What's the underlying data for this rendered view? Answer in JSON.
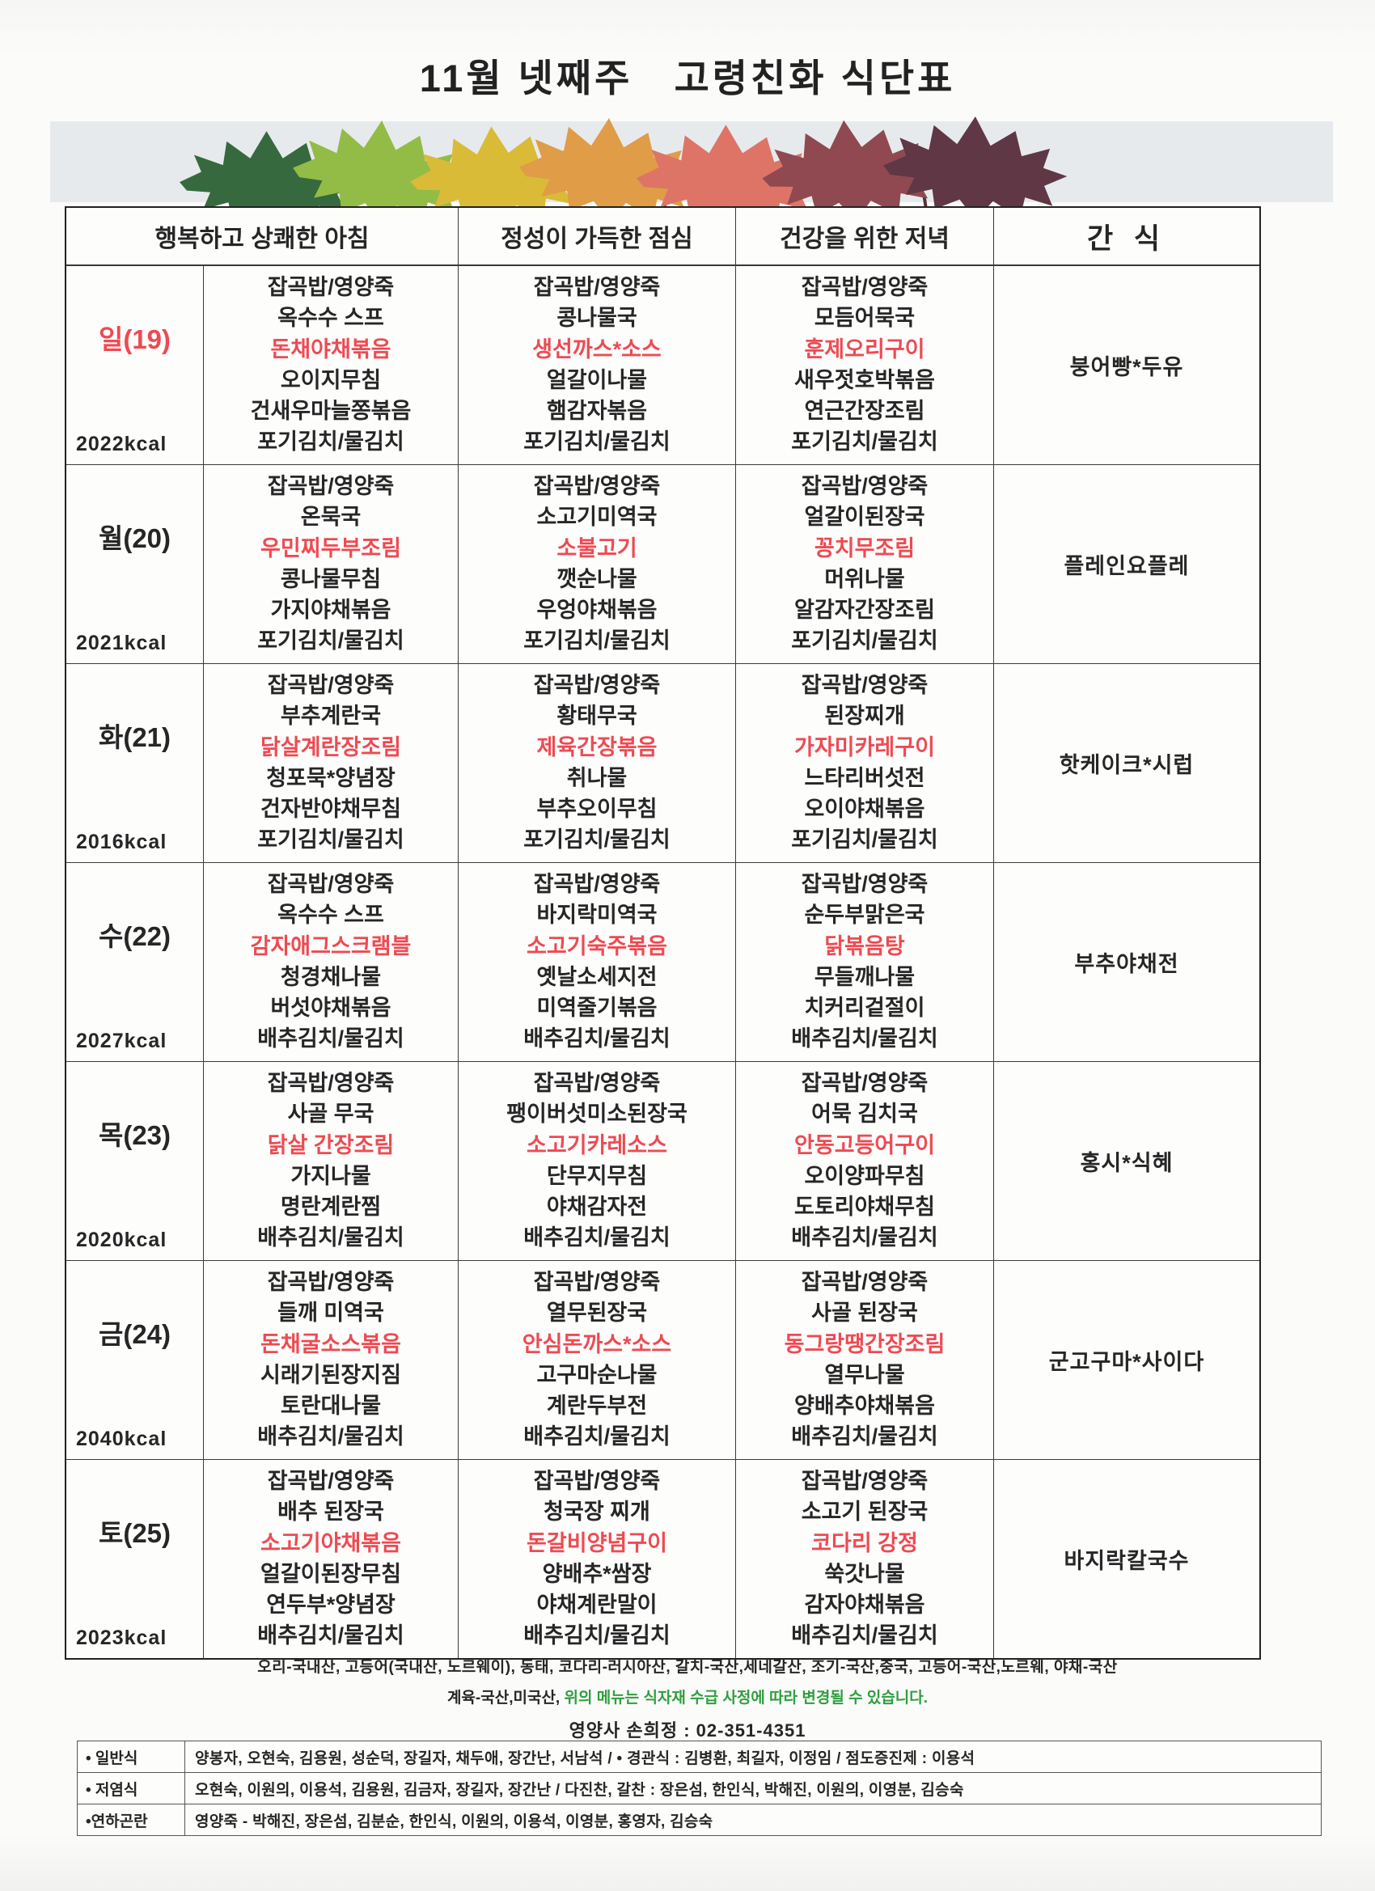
{
  "page": {
    "title": "11월 넷째주   고령친화 식단표"
  },
  "colors": {
    "highlight_red": "#ee4a52",
    "footer_green": "#2f9e3f",
    "banner_background": "#e7eaed"
  },
  "table": {
    "headers": {
      "breakfast": "행복하고 상쾌한 아침",
      "lunch": "정성이 가득한 점심",
      "dinner": "건강을 위한 저녁",
      "snack": "간 식"
    },
    "highlight_index": 2,
    "days": [
      {
        "day": "일(19)",
        "red_day": true,
        "kcal": "2022kcal",
        "breakfast": [
          "잡곡밥/영양죽",
          "옥수수 스프",
          "돈채야채볶음",
          "오이지무침",
          "건새우마늘쫑볶음",
          "포기김치/물김치"
        ],
        "lunch": [
          "잡곡밥/영양죽",
          "콩나물국",
          "생선까스*소스",
          "얼갈이나물",
          "햄감자볶음",
          "포기김치/물김치"
        ],
        "dinner": [
          "잡곡밥/영양죽",
          "모듬어묵국",
          "훈제오리구이",
          "새우젓호박볶음",
          "연근간장조림",
          "포기김치/물김치"
        ],
        "snack": "붕어빵*두유"
      },
      {
        "day": "월(20)",
        "red_day": false,
        "kcal": "2021kcal",
        "breakfast": [
          "잡곡밥/영양죽",
          "온묵국",
          "우민찌두부조림",
          "콩나물무침",
          "가지야채볶음",
          "포기김치/물김치"
        ],
        "lunch": [
          "잡곡밥/영양죽",
          "소고기미역국",
          "소불고기",
          "깻순나물",
          "우엉야채볶음",
          "포기김치/물김치"
        ],
        "dinner": [
          "잡곡밥/영양죽",
          "얼갈이된장국",
          "꽁치무조림",
          "머위나물",
          "알감자간장조림",
          "포기김치/물김치"
        ],
        "snack": "플레인요플레"
      },
      {
        "day": "화(21)",
        "red_day": false,
        "kcal": "2016kcal",
        "breakfast": [
          "잡곡밥/영양죽",
          "부추계란국",
          "닭살계란장조림",
          "청포묵*양념장",
          "건자반야채무침",
          "포기김치/물김치"
        ],
        "lunch": [
          "잡곡밥/영양죽",
          "황태무국",
          "제육간장볶음",
          "취나물",
          "부추오이무침",
          "포기김치/물김치"
        ],
        "dinner": [
          "잡곡밥/영양죽",
          "된장찌개",
          "가자미카레구이",
          "느타리버섯전",
          "오이야채볶음",
          "포기김치/물김치"
        ],
        "snack": "핫케이크*시럽"
      },
      {
        "day": "수(22)",
        "red_day": false,
        "kcal": "2027kcal",
        "breakfast": [
          "잡곡밥/영양죽",
          "옥수수 스프",
          "감자애그스크램블",
          "청경채나물",
          "버섯야채볶음",
          "배추김치/물김치"
        ],
        "lunch": [
          "잡곡밥/영양죽",
          "바지락미역국",
          "소고기숙주볶음",
          "옛날소세지전",
          "미역줄기볶음",
          "배추김치/물김치"
        ],
        "dinner": [
          "잡곡밥/영양죽",
          "순두부맑은국",
          "닭볶음탕",
          "무들깨나물",
          "치커리겉절이",
          "배추김치/물김치"
        ],
        "snack": "부추야채전"
      },
      {
        "day": "목(23)",
        "red_day": false,
        "kcal": "2020kcal",
        "breakfast": [
          "잡곡밥/영양죽",
          "사골 무국",
          "닭살 간장조림",
          "가지나물",
          "명란계란찜",
          "배추김치/물김치"
        ],
        "lunch": [
          "잡곡밥/영양죽",
          "팽이버섯미소된장국",
          "소고기카레소스",
          "단무지무침",
          "야채감자전",
          "배추김치/물김치"
        ],
        "dinner": [
          "잡곡밥/영양죽",
          "어묵 김치국",
          "안동고등어구이",
          "오이양파무침",
          "도토리야채무침",
          "배추김치/물김치"
        ],
        "snack": "홍시*식혜"
      },
      {
        "day": "금(24)",
        "red_day": false,
        "kcal": "2040kcal",
        "breakfast": [
          "잡곡밥/영양죽",
          "들깨 미역국",
          "돈채굴소스볶음",
          "시래기된장지짐",
          "토란대나물",
          "배추김치/물김치"
        ],
        "lunch": [
          "잡곡밥/영양죽",
          "열무된장국",
          "안심돈까스*소스",
          "고구마순나물",
          "계란두부전",
          "배추김치/물김치"
        ],
        "dinner": [
          "잡곡밥/영양죽",
          "사골 된장국",
          "동그랑땡간장조림",
          "열무나물",
          "양배추야채볶음",
          "배추김치/물김치"
        ],
        "snack": "군고구마*사이다"
      },
      {
        "day": "토(25)",
        "red_day": false,
        "kcal": "2023kcal",
        "breakfast": [
          "잡곡밥/영양죽",
          "배추 된장국",
          "소고기야채볶음",
          "얼갈이된장무침",
          "연두부*양념장",
          "배추김치/물김치"
        ],
        "lunch": [
          "잡곡밥/영양죽",
          "청국장 찌개",
          "돈갈비양념구이",
          "양배추*쌈장",
          "야채계란말이",
          "배추김치/물김치"
        ],
        "dinner": [
          "잡곡밥/영양죽",
          "소고기 된장국",
          "코다리 강정",
          "쑥갓나물",
          "감자야채볶음",
          "배추김치/물김치"
        ],
        "snack": "바지락칼국수"
      }
    ]
  },
  "footer": {
    "origin_line1": "오리-국내산, 고등어(국내산, 노르웨이), 동태, 코다리-러시아산, 갈치-국산,세네갈산, 조기-국산,중국, 고등어-국산,노르웨, 야채-국산",
    "origin_line2_black": "계육-국산,미국산, ",
    "origin_line2_green": "위의 메뉴는 식자재 수급 사정에 따라 변경될 수 있습니다.",
    "dietitian": "영양사 손희정 : 02-351-4351"
  },
  "diet_table": {
    "rows": [
      {
        "label": "• 일반식",
        "content": "양봉자, 오현숙, 김용원, 성순덕, 장길자, 채두애, 장간난, 서남석 /  • 경관식 : 김병환, 최길자, 이정임  / 점도증진제 : 이용석"
      },
      {
        "label": "• 저염식",
        "content": "오현숙, 이원의, 이용석, 김용원, 김금자, 장길자, 장간난 / 다진찬, 갈찬 :  장은섬, 한인식, 박해진, 이원의, 이영분, 김승숙"
      },
      {
        "label": "•연하곤란",
        "content": "영양죽 - 박해진, 장은섬, 김분순, 한인식, 이원의, 이용석, 이영분, 홍영자, 김승숙"
      }
    ]
  }
}
